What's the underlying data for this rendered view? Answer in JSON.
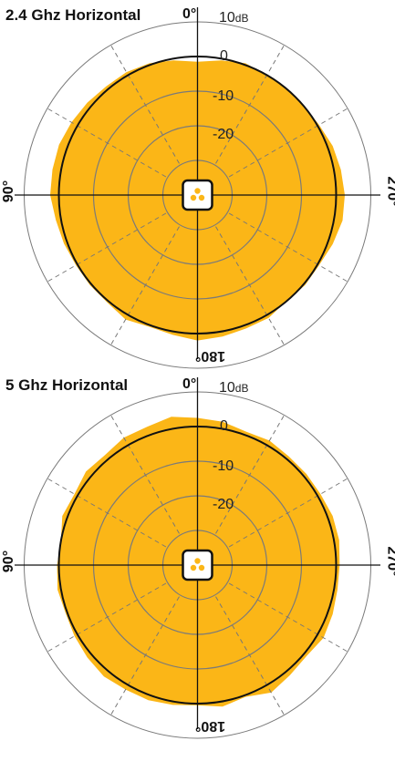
{
  "chart_data": [
    {
      "type": "polar",
      "title": "2.4 Ghz Horizontal",
      "angle_labels": {
        "top": "0°",
        "left": "90°",
        "right": "270°",
        "bottom": "180°"
      },
      "ring_labels": [
        {
          "value": 10,
          "text": "10",
          "unit": "dB"
        },
        {
          "value": 0,
          "text": "0"
        },
        {
          "value": -10,
          "text": "-10"
        },
        {
          "value": -20,
          "text": "-20"
        }
      ],
      "r_range": [
        -40,
        10
      ],
      "reference_level": 0,
      "fill_color": "#fbb617",
      "angles_deg": [
        0,
        10,
        20,
        30,
        40,
        50,
        60,
        70,
        80,
        90,
        100,
        110,
        120,
        130,
        140,
        150,
        160,
        170,
        180,
        190,
        200,
        210,
        220,
        230,
        240,
        250,
        260,
        270,
        280,
        290,
        300,
        310,
        320,
        330,
        340,
        350
      ],
      "gain_db": [
        -1.5,
        -0.5,
        0.5,
        1.0,
        1.0,
        1.5,
        2.0,
        2.5,
        2.5,
        2.5,
        1.5,
        1.0,
        0.5,
        0.5,
        0.5,
        1.5,
        0.5,
        1.0,
        2.0,
        1.5,
        1.0,
        1.0,
        0.0,
        0.5,
        0.5,
        1.5,
        2.5,
        2.5,
        2.0,
        1.5,
        0.5,
        0.0,
        0.0,
        0.0,
        0.5,
        -0.5
      ]
    },
    {
      "type": "polar",
      "title": "5 Ghz Horizontal",
      "angle_labels": {
        "top": "0°",
        "left": "90°",
        "right": "270°",
        "bottom": "180°"
      },
      "ring_labels": [
        {
          "value": 10,
          "text": "10",
          "unit": "dB"
        },
        {
          "value": 0,
          "text": "0"
        },
        {
          "value": -10,
          "text": "-10"
        },
        {
          "value": -20,
          "text": "-20"
        }
      ],
      "r_range": [
        -40,
        10
      ],
      "reference_level": 0,
      "fill_color": "#fbb617",
      "angles_deg": [
        0,
        10,
        20,
        30,
        40,
        50,
        60,
        70,
        80,
        90,
        100,
        110,
        120,
        130,
        140,
        150,
        160,
        170,
        180,
        190,
        200,
        210,
        220,
        230,
        240,
        250,
        260,
        270,
        280,
        290,
        300,
        310,
        320,
        330,
        340,
        350
      ],
      "gain_db": [
        2.5,
        3.5,
        2.5,
        2.5,
        1.5,
        2.0,
        1.0,
        1.5,
        0.0,
        0.5,
        1.0,
        0.5,
        1.0,
        1.5,
        2.0,
        1.5,
        1.5,
        1.0,
        0.5,
        1.5,
        0.5,
        2.5,
        1.5,
        1.0,
        2.0,
        1.5,
        1.0,
        1.0,
        1.5,
        1.5,
        1.0,
        1.0,
        1.0,
        1.5,
        1.0,
        2.0
      ]
    }
  ]
}
